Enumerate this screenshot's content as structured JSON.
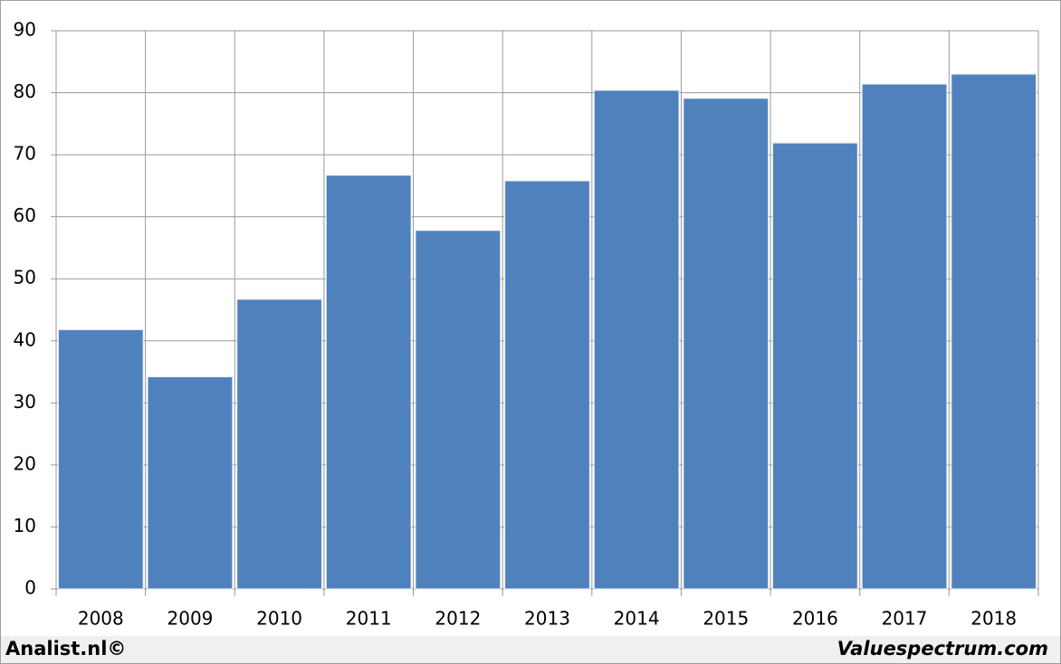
{
  "chart_data": {
    "type": "bar",
    "categories": [
      "2008",
      "2009",
      "2010",
      "2011",
      "2012",
      "2013",
      "2014",
      "2015",
      "2016",
      "2017",
      "2018"
    ],
    "values": [
      41.8,
      34.2,
      46.7,
      66.7,
      57.8,
      65.8,
      80.4,
      79.1,
      71.9,
      81.4,
      83.0
    ],
    "color": "#4f81bd",
    "ylim": [
      0,
      90
    ],
    "yticks": [
      0,
      10,
      20,
      30,
      40,
      50,
      60,
      70,
      80,
      90
    ],
    "grid": true,
    "footer_left": "Analist.nl©",
    "footer_right": "Valuespectrum.com"
  }
}
